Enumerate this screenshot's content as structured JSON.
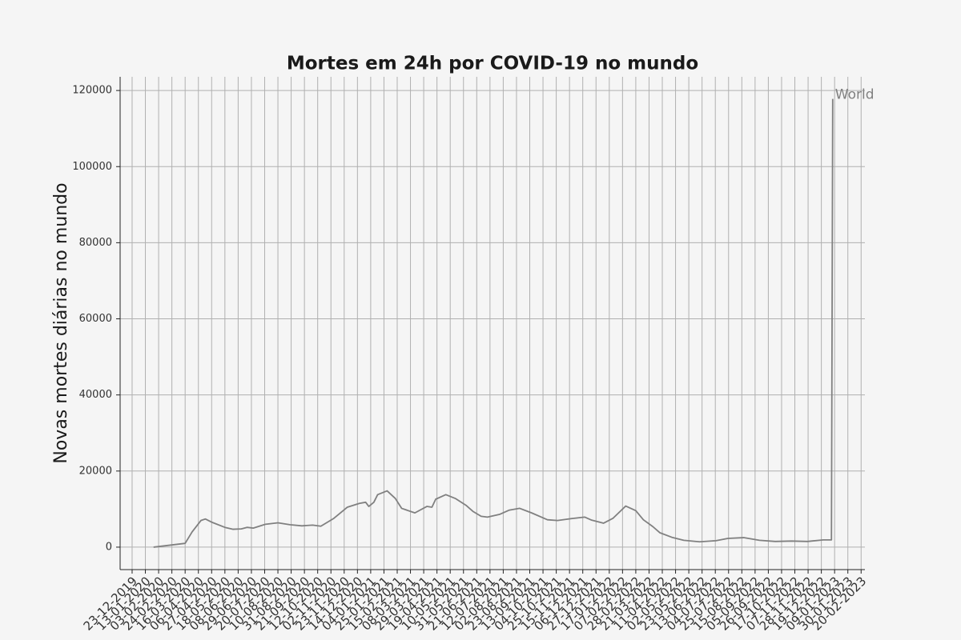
{
  "chart_data": {
    "type": "line",
    "title": "Mortes em 24h por COVID-19 no mundo",
    "y_label": "Novas mortes diárias no mundo",
    "grid": true,
    "xlim": [
      "2019-12-04",
      "2023-02-26"
    ],
    "ylim": [
      -5900,
      123600
    ],
    "yticks": [
      0,
      20000,
      40000,
      60000,
      80000,
      100000,
      120000
    ],
    "xticks": [
      {
        "value": "2019-12-23",
        "label": "23-12-2019"
      },
      {
        "value": "2020-01-13",
        "label": "13-01-2020"
      },
      {
        "value": "2020-02-03",
        "label": "03-02-2020"
      },
      {
        "value": "2020-02-24",
        "label": "24-02-2020"
      },
      {
        "value": "2020-03-16",
        "label": "16-03-2020"
      },
      {
        "value": "2020-04-06",
        "label": "06-04-2020"
      },
      {
        "value": "2020-04-27",
        "label": "27-04-2020"
      },
      {
        "value": "2020-05-18",
        "label": "18-05-2020"
      },
      {
        "value": "2020-06-08",
        "label": "08-06-2020"
      },
      {
        "value": "2020-06-29",
        "label": "29-06-2020"
      },
      {
        "value": "2020-07-20",
        "label": "20-07-2020"
      },
      {
        "value": "2020-08-10",
        "label": "10-08-2020"
      },
      {
        "value": "2020-08-31",
        "label": "31-08-2020"
      },
      {
        "value": "2020-09-21",
        "label": "21-09-2020"
      },
      {
        "value": "2020-10-12",
        "label": "12-10-2020"
      },
      {
        "value": "2020-11-02",
        "label": "02-11-2020"
      },
      {
        "value": "2020-11-23",
        "label": "23-11-2020"
      },
      {
        "value": "2020-12-14",
        "label": "14-12-2020"
      },
      {
        "value": "2021-01-04",
        "label": "04-01-2021"
      },
      {
        "value": "2021-01-25",
        "label": "25-01-2021"
      },
      {
        "value": "2021-02-15",
        "label": "15-02-2021"
      },
      {
        "value": "2021-03-08",
        "label": "08-03-2021"
      },
      {
        "value": "2021-03-29",
        "label": "29-03-2021"
      },
      {
        "value": "2021-04-19",
        "label": "19-04-2021"
      },
      {
        "value": "2021-05-10",
        "label": "10-05-2021"
      },
      {
        "value": "2021-05-31",
        "label": "31-05-2021"
      },
      {
        "value": "2021-06-21",
        "label": "21-06-2021"
      },
      {
        "value": "2021-07-12",
        "label": "12-07-2021"
      },
      {
        "value": "2021-08-02",
        "label": "02-08-2021"
      },
      {
        "value": "2021-08-23",
        "label": "23-08-2021"
      },
      {
        "value": "2021-09-13",
        "label": "13-09-2021"
      },
      {
        "value": "2021-10-04",
        "label": "04-10-2021"
      },
      {
        "value": "2021-10-25",
        "label": "25-10-2021"
      },
      {
        "value": "2021-11-15",
        "label": "15-11-2021"
      },
      {
        "value": "2021-12-06",
        "label": "06-12-2021"
      },
      {
        "value": "2021-12-27",
        "label": "27-12-2021"
      },
      {
        "value": "2022-01-17",
        "label": "17-01-2022"
      },
      {
        "value": "2022-02-07",
        "label": "07-02-2022"
      },
      {
        "value": "2022-02-28",
        "label": "28-02-2022"
      },
      {
        "value": "2022-03-21",
        "label": "21-03-2022"
      },
      {
        "value": "2022-04-11",
        "label": "11-04-2022"
      },
      {
        "value": "2022-05-02",
        "label": "02-05-2022"
      },
      {
        "value": "2022-05-23",
        "label": "23-05-2022"
      },
      {
        "value": "2022-06-13",
        "label": "13-06-2022"
      },
      {
        "value": "2022-07-04",
        "label": "04-07-2022"
      },
      {
        "value": "2022-07-25",
        "label": "25-07-2022"
      },
      {
        "value": "2022-08-15",
        "label": "15-08-2022"
      },
      {
        "value": "2022-09-05",
        "label": "05-09-2022"
      },
      {
        "value": "2022-09-26",
        "label": "26-09-2022"
      },
      {
        "value": "2022-10-17",
        "label": "17-10-2022"
      },
      {
        "value": "2022-11-07",
        "label": "07-11-2022"
      },
      {
        "value": "2022-11-28",
        "label": "28-11-2022"
      },
      {
        "value": "2022-12-19",
        "label": "19-12-2022"
      },
      {
        "value": "2023-01-09",
        "label": "09-01-2023"
      },
      {
        "value": "2023-01-30",
        "label": "30-01-2023"
      },
      {
        "value": "2023-02-20",
        "label": "20-02-2023"
      }
    ],
    "x": [
      "2020-01-26",
      "2020-03-16",
      "2020-03-27",
      "2020-04-10",
      "2020-04-17",
      "2020-04-28",
      "2020-05-18",
      "2020-05-31",
      "2020-06-13",
      "2020-06-22",
      "2020-07-02",
      "2020-07-21",
      "2020-08-10",
      "2020-08-29",
      "2020-09-17",
      "2020-10-04",
      "2020-10-17",
      "2020-11-06",
      "2020-11-28",
      "2020-12-17",
      "2020-12-27",
      "2021-01-01",
      "2021-01-09",
      "2021-01-15",
      "2021-01-30",
      "2021-02-12",
      "2021-02-22",
      "2021-03-15",
      "2021-04-03",
      "2021-04-11",
      "2021-04-17",
      "2021-05-03",
      "2021-05-18",
      "2021-06-04",
      "2021-06-15",
      "2021-06-28",
      "2021-07-08",
      "2021-07-27",
      "2021-08-11",
      "2021-08-28",
      "2021-09-16",
      "2021-10-11",
      "2021-10-27",
      "2021-11-18",
      "2021-12-09",
      "2021-12-20",
      "2022-01-08",
      "2022-01-23",
      "2022-02-12",
      "2022-02-28",
      "2022-03-12",
      "2022-03-27",
      "2022-04-07",
      "2022-04-26",
      "2022-05-15",
      "2022-06-09",
      "2022-07-05",
      "2022-07-24",
      "2022-08-18",
      "2022-09-12",
      "2022-10-07",
      "2022-11-02",
      "2022-11-27",
      "2022-12-22",
      "2023-01-04",
      "2023-01-06"
    ],
    "series": [
      {
        "name": "World",
        "color": "#808080",
        "values": [
          0,
          1000,
          4000,
          7000,
          7400,
          6500,
          5200,
          4700,
          4800,
          5200,
          5000,
          6000,
          6400,
          5900,
          5600,
          5800,
          5500,
          7500,
          10500,
          11500,
          11800,
          10700,
          11800,
          13800,
          14800,
          12800,
          10200,
          9000,
          10700,
          10500,
          12600,
          13800,
          12800,
          11000,
          9400,
          8100,
          7900,
          8600,
          9700,
          10200,
          9000,
          7200,
          7000,
          7500,
          7900,
          7100,
          6300,
          7600,
          10800,
          9600,
          7200,
          5400,
          3800,
          2600,
          1800,
          1400,
          1700,
          2300,
          2500,
          1800,
          1500,
          1600,
          1500,
          1900,
          1900,
          117800
        ]
      }
    ]
  }
}
